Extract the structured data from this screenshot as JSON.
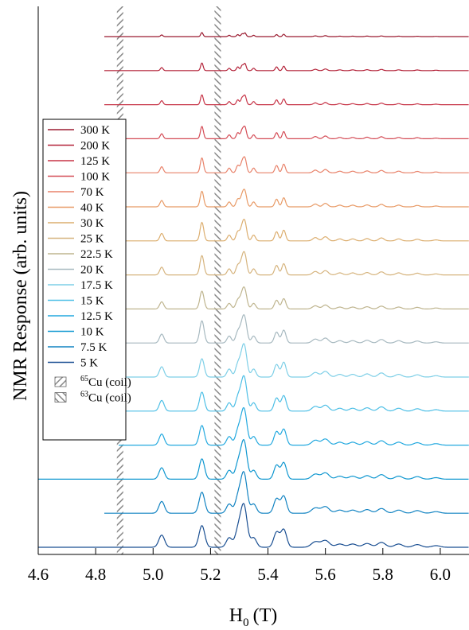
{
  "chart_data": {
    "type": "line",
    "xlabel": "H",
    "xlabel_sub": "0",
    "xlabel_unit": "(T)",
    "ylabel": "NMR Response (arb. units)",
    "xlim": [
      4.6,
      6.1
    ],
    "x_ticks": [
      "4.6",
      "4.8",
      "5.0",
      "5.2",
      "5.4",
      "5.6",
      "5.8",
      "6.0"
    ],
    "x_tick_values": [
      4.6,
      4.8,
      5.0,
      5.2,
      5.4,
      5.6,
      5.8,
      6.0
    ],
    "stacked": true,
    "grid": false,
    "legend_position": "left",
    "series": [
      {
        "name": "300 K",
        "color": "#9b1b30",
        "x_start": 4.83,
        "amp": 0.25
      },
      {
        "name": "200 K",
        "color": "#b4243a",
        "x_start": 4.83,
        "amp": 0.45
      },
      {
        "name": "125 K",
        "color": "#c73447",
        "x_start": 4.83,
        "amp": 0.55
      },
      {
        "name": "100 K",
        "color": "#d44b55",
        "x_start": 4.83,
        "amp": 0.65
      },
      {
        "name": "70 K",
        "color": "#e8826a",
        "x_start": 4.88,
        "amp": 0.75
      },
      {
        "name": "40 K",
        "color": "#e89a66",
        "x_start": 4.88,
        "amp": 0.75
      },
      {
        "name": "30 K",
        "color": "#dcae6f",
        "x_start": 4.88,
        "amp": 0.85
      },
      {
        "name": "25 K",
        "color": "#d6b47e",
        "x_start": 4.88,
        "amp": 0.85
      },
      {
        "name": "22.5 K",
        "color": "#bfb58f",
        "x_start": 4.88,
        "amp": 0.75
      },
      {
        "name": "20 K",
        "color": "#a7b9c0",
        "x_start": 4.88,
        "amp": 0.9
      },
      {
        "name": "17.5 K",
        "color": "#7ecfe7",
        "x_start": 4.88,
        "amp": 1.0
      },
      {
        "name": "15 K",
        "color": "#4dbfe6",
        "x_start": 4.88,
        "amp": 1.0
      },
      {
        "name": "12.5 K",
        "color": "#23a9df",
        "x_start": 4.88,
        "amp": 1.0
      },
      {
        "name": "10 K",
        "color": "#0f97d0",
        "x_start": 4.6,
        "amp": 1.0
      },
      {
        "name": "7.5 K",
        "color": "#1183c2",
        "x_start": 4.83,
        "amp": 1.0
      },
      {
        "name": "5 K",
        "color": "#1a4f92",
        "x_start": 4.6,
        "amp": 1.0
      }
    ],
    "peaks_T": [
      5.03,
      5.17,
      5.265,
      5.295,
      5.31,
      5.32,
      5.35,
      5.43,
      5.455,
      5.565,
      5.6,
      5.65,
      5.695,
      5.745,
      5.795,
      5.855,
      5.92,
      5.985
    ],
    "coil_bands": [
      {
        "label_super": "65",
        "label": "Cu (coil)",
        "x_center": 4.885,
        "pattern": "hatch-right"
      },
      {
        "label_super": "63",
        "label": "Cu (coil)",
        "x_center": 5.225,
        "pattern": "hatch-left"
      }
    ]
  }
}
